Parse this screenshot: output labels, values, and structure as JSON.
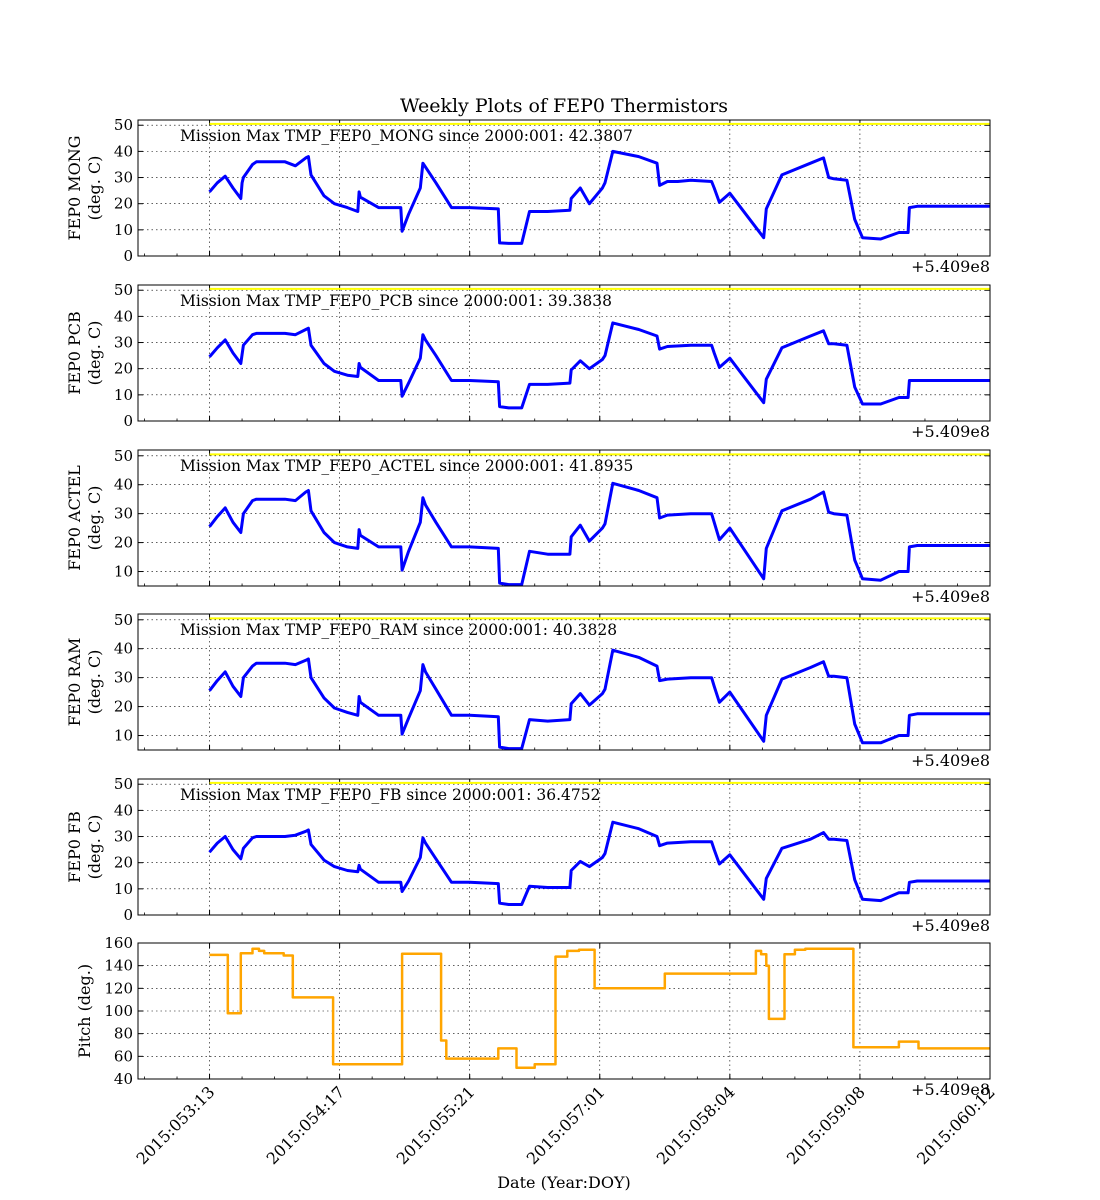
{
  "title": "Weekly Plots of FEP0 Thermistors",
  "xlabel": "Date (Year:DOY)",
  "offset_label": "+5.409e8",
  "colors": {
    "temp": "#0000ff",
    "pitch": "#ffa500",
    "limit": "#ffff00"
  },
  "chart_data": [
    {
      "type": "line",
      "ylabel_line1": "FEP0 MONG",
      "ylabel_line2": "(deg. C)",
      "annotation": "Mission Max TMP_FEP0_MONG since 2000:001: 42.3807",
      "ylim": [
        0,
        52
      ],
      "yticks": [
        0,
        10,
        20,
        30,
        40,
        50
      ],
      "limit_line": 50.5,
      "x": [
        0.0,
        0.06,
        0.12,
        0.18,
        0.24,
        0.25,
        0.26,
        0.33,
        0.36,
        0.58,
        0.66,
        0.74,
        0.76,
        0.78,
        0.88,
        0.96,
        1.06,
        1.14,
        1.15,
        1.16,
        1.3,
        1.47,
        1.48,
        1.53,
        1.62,
        1.64,
        1.66,
        1.74,
        1.86,
        2.0,
        2.22,
        2.23,
        2.3,
        2.4,
        2.46,
        2.6,
        2.77,
        2.78,
        2.85,
        2.92,
        3.02,
        3.04,
        3.1,
        3.3,
        3.44,
        3.46,
        3.52,
        3.6,
        3.7,
        3.86,
        3.88,
        3.92,
        4.0,
        4.26,
        4.28,
        4.4,
        4.62,
        4.72,
        4.76,
        4.8,
        4.9,
        4.96,
        5.02,
        5.16,
        5.3,
        5.37,
        5.38,
        5.44,
        5.54,
        5.64,
        5.66,
        5.74,
        5.84,
        5.94,
        6.0
      ],
      "y": [
        24.5,
        28.0,
        30.5,
        26.0,
        22.0,
        28.0,
        30.0,
        35.0,
        36.0,
        36.0,
        34.5,
        37.5,
        38.0,
        31.0,
        23.0,
        20.0,
        18.5,
        17.0,
        24.5,
        22.5,
        18.5,
        18.5,
        9.5,
        16.0,
        26.0,
        35.5,
        34.0,
        28.0,
        18.5,
        18.5,
        18.0,
        5.0,
        4.8,
        4.8,
        17.0,
        17.0,
        17.5,
        22.0,
        26.0,
        20.0,
        26.0,
        28.0,
        40.0,
        38.0,
        35.5,
        27.0,
        28.5,
        28.5,
        29.0,
        28.5,
        26.0,
        20.5,
        24.0,
        7.0,
        18.0,
        31.0,
        35.5,
        37.5,
        30.0,
        29.5,
        29.0,
        14.0,
        7.0,
        6.5,
        9.0,
        9.0,
        18.5,
        19.0,
        19.0,
        19.0,
        19.0,
        19.0,
        19.0,
        19.0,
        19.0
      ]
    },
    {
      "type": "line",
      "ylabel_line1": "FEP0 PCB",
      "ylabel_line2": "(deg. C)",
      "annotation": "Mission Max TMP_FEP0_PCB since 2000:001: 39.3838",
      "ylim": [
        0,
        52
      ],
      "yticks": [
        0,
        10,
        20,
        30,
        40,
        50
      ],
      "limit_line": 50.5,
      "x": [
        0.0,
        0.06,
        0.12,
        0.18,
        0.24,
        0.26,
        0.33,
        0.36,
        0.58,
        0.66,
        0.74,
        0.76,
        0.78,
        0.88,
        0.96,
        1.06,
        1.14,
        1.15,
        1.16,
        1.3,
        1.47,
        1.48,
        1.53,
        1.62,
        1.64,
        1.66,
        1.74,
        1.86,
        2.0,
        2.22,
        2.23,
        2.3,
        2.4,
        2.46,
        2.6,
        2.77,
        2.78,
        2.85,
        2.92,
        3.02,
        3.04,
        3.1,
        3.3,
        3.44,
        3.46,
        3.52,
        3.7,
        3.86,
        3.88,
        3.92,
        4.0,
        4.26,
        4.28,
        4.4,
        4.62,
        4.72,
        4.76,
        4.8,
        4.9,
        4.96,
        5.02,
        5.16,
        5.3,
        5.37,
        5.38,
        5.44,
        5.6,
        6.0
      ],
      "y": [
        24.5,
        28.0,
        31.0,
        26.0,
        22.0,
        29.0,
        33.0,
        33.5,
        33.5,
        33.0,
        35.0,
        35.5,
        29.0,
        22.0,
        19.0,
        17.5,
        17.0,
        22.0,
        20.5,
        15.5,
        15.5,
        9.5,
        14.5,
        24.0,
        33.0,
        31.0,
        25.0,
        15.5,
        15.5,
        15.0,
        5.5,
        5.0,
        5.0,
        14.0,
        14.0,
        14.5,
        19.5,
        23.0,
        20.0,
        23.5,
        25.0,
        37.5,
        35.0,
        32.5,
        27.5,
        28.5,
        29.0,
        29.0,
        26.0,
        20.5,
        24.0,
        7.0,
        16.0,
        28.0,
        32.5,
        34.5,
        29.5,
        29.5,
        29.0,
        13.0,
        6.5,
        6.5,
        9.0,
        9.0,
        15.5,
        15.5,
        15.5,
        15.5
      ]
    },
    {
      "type": "line",
      "ylabel_line1": "FEP0 ACTEL",
      "ylabel_line2": "(deg. C)",
      "annotation": "Mission Max TMP_FEP0_ACTEL since 2000:001: 41.8935",
      "ylim": [
        5,
        52
      ],
      "yticks": [
        10,
        20,
        30,
        40,
        50
      ],
      "limit_line": 50.5,
      "x": [
        0.0,
        0.06,
        0.12,
        0.18,
        0.24,
        0.26,
        0.33,
        0.36,
        0.58,
        0.66,
        0.74,
        0.76,
        0.78,
        0.88,
        0.96,
        1.06,
        1.14,
        1.15,
        1.16,
        1.3,
        1.47,
        1.48,
        1.53,
        1.62,
        1.64,
        1.66,
        1.74,
        1.86,
        2.0,
        2.22,
        2.23,
        2.3,
        2.4,
        2.46,
        2.6,
        2.77,
        2.78,
        2.85,
        2.92,
        3.02,
        3.04,
        3.1,
        3.3,
        3.44,
        3.46,
        3.52,
        3.7,
        3.86,
        3.88,
        3.92,
        4.0,
        4.26,
        4.28,
        4.4,
        4.62,
        4.72,
        4.76,
        4.8,
        4.9,
        4.96,
        5.02,
        5.16,
        5.3,
        5.37,
        5.38,
        5.44,
        5.6,
        6.0
      ],
      "y": [
        25.5,
        29.0,
        32.0,
        27.0,
        23.5,
        30.0,
        34.5,
        35.0,
        35.0,
        34.5,
        37.5,
        38.0,
        31.0,
        23.5,
        20.0,
        18.5,
        18.0,
        24.5,
        22.5,
        18.5,
        18.5,
        10.5,
        17.0,
        27.0,
        35.5,
        33.0,
        27.0,
        18.5,
        18.5,
        18.0,
        6.0,
        5.5,
        5.5,
        17.0,
        16.0,
        16.0,
        22.0,
        26.0,
        20.5,
        25.0,
        26.5,
        40.5,
        38.0,
        35.5,
        28.5,
        29.5,
        30.0,
        30.0,
        27.0,
        21.0,
        25.0,
        7.5,
        18.0,
        31.0,
        35.0,
        37.5,
        30.5,
        30.0,
        29.5,
        14.0,
        7.5,
        7.0,
        10.0,
        10.0,
        18.5,
        19.0,
        19.0,
        19.0
      ]
    },
    {
      "type": "line",
      "ylabel_line1": "FEP0 RAM",
      "ylabel_line2": "(deg. C)",
      "annotation": "Mission Max TMP_FEP0_RAM since 2000:001: 40.3828",
      "ylim": [
        5,
        52
      ],
      "yticks": [
        10,
        20,
        30,
        40,
        50
      ],
      "limit_line": 50.5,
      "x": [
        0.0,
        0.06,
        0.12,
        0.18,
        0.24,
        0.26,
        0.33,
        0.36,
        0.58,
        0.66,
        0.74,
        0.76,
        0.78,
        0.88,
        0.96,
        1.06,
        1.14,
        1.15,
        1.16,
        1.3,
        1.47,
        1.48,
        1.53,
        1.62,
        1.64,
        1.66,
        1.74,
        1.86,
        2.0,
        2.22,
        2.23,
        2.3,
        2.4,
        2.46,
        2.6,
        2.77,
        2.78,
        2.85,
        2.92,
        3.02,
        3.04,
        3.1,
        3.3,
        3.44,
        3.46,
        3.52,
        3.7,
        3.86,
        3.88,
        3.92,
        4.0,
        4.26,
        4.28,
        4.4,
        4.62,
        4.72,
        4.76,
        4.8,
        4.9,
        4.96,
        5.02,
        5.16,
        5.3,
        5.37,
        5.38,
        5.44,
        5.6,
        6.0
      ],
      "y": [
        25.5,
        29.0,
        32.0,
        27.0,
        23.5,
        30.0,
        34.0,
        35.0,
        35.0,
        34.5,
        36.0,
        36.5,
        30.0,
        23.0,
        19.5,
        18.0,
        17.0,
        23.5,
        21.5,
        17.0,
        17.0,
        10.5,
        16.0,
        25.5,
        34.5,
        32.0,
        26.0,
        17.0,
        17.0,
        16.5,
        6.0,
        5.5,
        5.5,
        15.5,
        15.0,
        15.5,
        21.0,
        24.5,
        20.5,
        24.5,
        26.0,
        39.5,
        37.0,
        34.0,
        29.0,
        29.5,
        30.0,
        30.0,
        27.0,
        21.5,
        25.0,
        8.0,
        17.0,
        29.5,
        33.5,
        35.5,
        30.5,
        30.5,
        30.0,
        14.0,
        7.5,
        7.5,
        10.0,
        10.0,
        17.0,
        17.5,
        17.5,
        17.5
      ]
    },
    {
      "type": "line",
      "ylabel_line1": "FEP0 FB",
      "ylabel_line2": "(deg. C)",
      "annotation": "Mission Max TMP_FEP0_FB since 2000:001: 36.4752",
      "ylim": [
        0,
        52
      ],
      "yticks": [
        0,
        10,
        20,
        30,
        40,
        50
      ],
      "limit_line": 50.5,
      "x": [
        0.0,
        0.06,
        0.12,
        0.18,
        0.24,
        0.26,
        0.33,
        0.36,
        0.58,
        0.66,
        0.74,
        0.76,
        0.78,
        0.88,
        0.96,
        1.06,
        1.14,
        1.15,
        1.16,
        1.3,
        1.47,
        1.48,
        1.53,
        1.62,
        1.64,
        1.66,
        1.74,
        1.86,
        2.0,
        2.22,
        2.23,
        2.3,
        2.4,
        2.46,
        2.6,
        2.77,
        2.78,
        2.85,
        2.92,
        3.02,
        3.04,
        3.1,
        3.3,
        3.44,
        3.46,
        3.52,
        3.7,
        3.86,
        3.88,
        3.92,
        4.0,
        4.26,
        4.28,
        4.4,
        4.62,
        4.72,
        4.76,
        4.8,
        4.9,
        4.96,
        5.02,
        5.16,
        5.3,
        5.37,
        5.38,
        5.44,
        5.6,
        6.0
      ],
      "y": [
        24.0,
        27.5,
        30.0,
        25.0,
        21.5,
        25.5,
        29.5,
        30.0,
        30.0,
        30.5,
        32.0,
        32.5,
        27.0,
        21.0,
        18.5,
        17.0,
        16.5,
        19.0,
        17.5,
        12.5,
        12.5,
        9.0,
        13.0,
        22.0,
        29.5,
        27.5,
        21.5,
        12.5,
        12.5,
        12.0,
        4.5,
        4.0,
        4.0,
        11.0,
        10.5,
        10.5,
        17.0,
        20.5,
        18.5,
        22.0,
        23.5,
        35.5,
        33.0,
        30.0,
        26.5,
        27.5,
        28.0,
        28.0,
        25.0,
        19.5,
        23.0,
        6.0,
        14.0,
        25.5,
        29.0,
        31.5,
        29.0,
        29.0,
        28.5,
        13.5,
        6.0,
        5.5,
        8.5,
        8.5,
        12.5,
        13.0,
        13.0,
        13.0
      ]
    },
    {
      "type": "line",
      "ylabel_line1": "Pitch (deg.)",
      "ylabel_line2": "",
      "annotation": "",
      "ylim": [
        40,
        160
      ],
      "yticks": [
        40,
        60,
        80,
        100,
        120,
        140,
        160
      ],
      "limit_line": null,
      "x": [
        0.0,
        0.14,
        0.14,
        0.24,
        0.24,
        0.33,
        0.33,
        0.38,
        0.38,
        0.42,
        0.42,
        0.57,
        0.57,
        0.64,
        0.64,
        0.72,
        0.72,
        0.95,
        0.95,
        1.14,
        1.14,
        1.48,
        1.48,
        1.72,
        1.72,
        1.78,
        1.78,
        1.82,
        1.82,
        2.08,
        2.08,
        2.22,
        2.22,
        2.36,
        2.36,
        2.5,
        2.5,
        2.66,
        2.66,
        2.75,
        2.75,
        2.84,
        2.84,
        2.96,
        2.96,
        3.14,
        3.14,
        3.5,
        3.5,
        3.6,
        3.6,
        3.92,
        4.2,
        4.2,
        4.24,
        4.24,
        4.28,
        4.28,
        4.3,
        4.3,
        4.42,
        4.42,
        4.5,
        4.5,
        4.58,
        4.58,
        4.64,
        4.64,
        4.95,
        4.95,
        5.3,
        5.3,
        5.36,
        5.36,
        5.45,
        5.45,
        5.55,
        5.55,
        6.0
      ],
      "y": [
        149.5,
        149.5,
        98,
        98,
        151,
        151,
        155,
        155,
        153,
        153,
        151,
        151,
        149,
        149,
        112,
        112,
        112,
        112,
        53,
        53,
        53,
        53,
        150.5,
        150.5,
        150.5,
        150.5,
        74,
        74,
        58,
        58,
        58,
        58,
        67,
        67,
        50,
        50,
        53,
        53,
        148,
        148,
        153,
        153,
        154,
        154,
        120,
        120,
        120,
        120,
        133,
        133,
        133,
        133,
        133,
        153,
        153,
        150,
        150,
        140,
        140,
        93,
        93,
        150,
        150,
        154,
        154,
        155,
        155,
        155,
        155,
        68,
        68,
        73,
        73,
        73,
        73,
        67,
        67,
        67,
        67
      ]
    }
  ],
  "x_axis": {
    "xlim": [
      -0.55,
      6.0
    ],
    "tick_positions": [
      0.0,
      1.0,
      2.0,
      3.0,
      4.0,
      5.0,
      6.0
    ],
    "tick_labels": [
      "2015:053:13",
      "2015:054:17",
      "2015:055:21",
      "2015:057:01",
      "2015:058:04",
      "2015:059:08",
      "2015:060:12"
    ]
  }
}
